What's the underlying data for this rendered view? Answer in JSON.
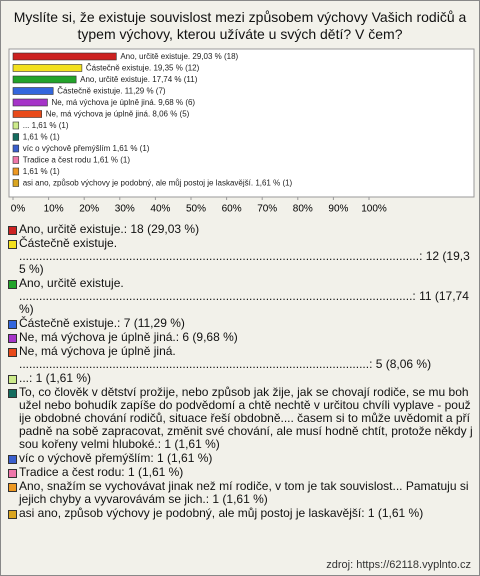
{
  "chart_data": {
    "type": "bar",
    "orientation": "horizontal",
    "title": "Myslíte si, že existuje souvislost mezi způsobem výchovy Vašich rodičů a typem výchovy, kterou užíváte u svých dětí? V čem?",
    "categories": [
      "Ano, určitě existuje.",
      "Částečně existuje.",
      "Ano, určitě existuje.",
      "Částečně existuje.",
      "Ne, má výchova je úplně jiná.",
      "Ne, má výchova je úplně jiná.",
      "...",
      null,
      "víc o výchově přemýšlím",
      "Tradice a čest rodu",
      null,
      "asi ano, způsob výchovy je podobný, ale můj postoj je laskavější."
    ],
    "values": [
      29.03,
      19.35,
      17.74,
      11.29,
      9.68,
      8.06,
      1.61,
      1.61,
      1.61,
      1.61,
      1.61,
      1.61
    ],
    "value_labels": [
      "29,03 % (18)",
      "19,35 % (12)",
      "17,74 % (11)",
      "11,29 % (7)",
      "9,68 % (6)",
      "8,06 % (5)",
      "1,61 % (1)",
      "1,61 % (1)",
      "1,61 % (1)",
      "1,61 % (1)",
      "1,61 % (1)",
      "1,61 % (1)"
    ],
    "colors": [
      "#cc2222",
      "#f2e01e",
      "#22a32a",
      "#3366dd",
      "#a534c8",
      "#e84a1a",
      "#cdeb8b",
      "#146c5e",
      "#3a5fcd",
      "#ee77aa",
      "#ee9922",
      "#d9a520"
    ],
    "xlim": [
      0,
      100
    ],
    "xticks": [
      {
        "value": 0,
        "label": "0%"
      },
      {
        "value": 10,
        "label": "10%"
      },
      {
        "value": 20,
        "label": "20%"
      },
      {
        "value": 30,
        "label": "30%"
      },
      {
        "value": 40,
        "label": "40%"
      },
      {
        "value": 50,
        "label": "50%"
      },
      {
        "value": 60,
        "label": "60%"
      },
      {
        "value": 70,
        "label": "70%"
      },
      {
        "value": 80,
        "label": "80%"
      },
      {
        "value": 90,
        "label": "90%"
      },
      {
        "value": 100,
        "label": "100%"
      }
    ]
  },
  "legend": [
    "Ano, určitě existuje.: 18 (29,03 %)",
    "Částečně existuje. ........................................................................................................................: 12 (19,35 %)",
    "Ano, určitě existuje. ......................................................................................................................: 11 (17,74 %)",
    "Částečně existuje.: 7 (11,29 %)",
    "Ne, má výchova je úplně jiná.: 6 (9,68 %)",
    "Ne, má výchova je úplně jiná. .........................................................................................................: 5 (8,06 %)",
    "...: 1 (1,61 %)",
    "To, co člověk v dětství prožije, nebo způsob jak žije, jak se chovají rodiče, se mu bohužel nebo bohudík zapíše do podvědomí a chtě nechtě v určitou chvíli vyplave - použije obdobné chování rodičů, situace řeší obdobně.... časem si to může uvědomit a případně na sobě zapracovat, změnit své chování, ale musí hodně chtít, protože někdy jsou kořeny velmi hluboké.: 1 (1,61 %)",
    "víc o výchově přemýšlím: 1 (1,61 %)",
    "Tradice a čest rodu: 1 (1,61 %)",
    "Ano, snažím se vychovávat jinak než mí rodiče, v tom je tak souvislost... Pamatuju si jejich chyby a vyvarovávám se jich.: 1 (1,61 %)",
    "asi ano, způsob výchovy je podobný, ale můj postoj je laskavější: 1 (1,61 %)"
  ],
  "source": "zdroj: https://62118.vyplnto.cz"
}
